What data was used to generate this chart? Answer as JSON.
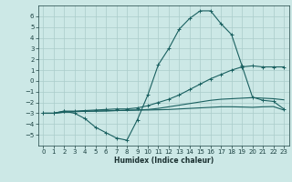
{
  "xlabel": "Humidex (Indice chaleur)",
  "bg_color": "#cce8e6",
  "grid_color": "#aaccca",
  "line_color": "#1a6060",
  "x_values": [
    0,
    1,
    2,
    3,
    4,
    5,
    6,
    7,
    8,
    9,
    10,
    11,
    12,
    13,
    14,
    15,
    16,
    17,
    18,
    19,
    20,
    21,
    22,
    23
  ],
  "line1_y": [
    -3.0,
    -3.0,
    -2.8,
    -3.0,
    -3.5,
    -4.3,
    -4.8,
    -5.3,
    -5.5,
    -3.6,
    -1.3,
    1.5,
    3.0,
    4.8,
    5.8,
    6.5,
    6.5,
    5.3,
    4.3,
    1.4,
    -1.5,
    -1.8,
    -1.9,
    -2.6
  ],
  "line2_y": [
    -3.0,
    -3.0,
    -2.8,
    -2.8,
    -2.75,
    -2.7,
    -2.65,
    -2.6,
    -2.6,
    -2.5,
    -2.3,
    -2.0,
    -1.7,
    -1.3,
    -0.8,
    -0.3,
    0.2,
    0.6,
    1.0,
    1.3,
    1.4,
    1.3,
    1.3,
    1.3
  ],
  "line3_y": [
    -3.0,
    -3.0,
    -2.9,
    -2.85,
    -2.82,
    -2.8,
    -2.78,
    -2.75,
    -2.73,
    -2.7,
    -2.65,
    -2.55,
    -2.4,
    -2.25,
    -2.1,
    -1.95,
    -1.8,
    -1.7,
    -1.65,
    -1.6,
    -1.55,
    -1.6,
    -1.65,
    -1.75
  ],
  "line4_y": [
    -3.0,
    -3.0,
    -2.9,
    -2.85,
    -2.82,
    -2.8,
    -2.78,
    -2.75,
    -2.73,
    -2.7,
    -2.7,
    -2.68,
    -2.65,
    -2.6,
    -2.55,
    -2.5,
    -2.45,
    -2.4,
    -2.4,
    -2.42,
    -2.45,
    -2.4,
    -2.38,
    -2.7
  ],
  "ylim": [
    -6,
    7
  ],
  "xlim": [
    -0.5,
    23.5
  ],
  "yticks": [
    -5,
    -4,
    -3,
    -2,
    -1,
    0,
    1,
    2,
    3,
    4,
    5,
    6
  ],
  "xticks": [
    0,
    1,
    2,
    3,
    4,
    5,
    6,
    7,
    8,
    9,
    10,
    11,
    12,
    13,
    14,
    15,
    16,
    17,
    18,
    19,
    20,
    21,
    22,
    23
  ]
}
